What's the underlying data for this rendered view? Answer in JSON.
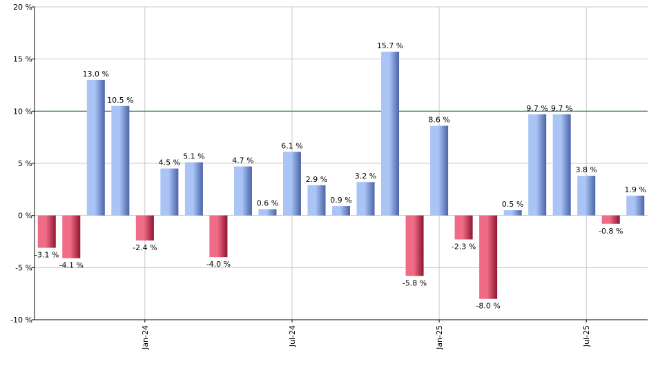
{
  "chart_data": {
    "type": "bar",
    "title": "",
    "xlabel": "",
    "ylabel": "",
    "ylim": [
      -10,
      20
    ],
    "y_ticks": [
      -10,
      -5,
      0,
      5,
      10,
      15,
      20
    ],
    "y_tick_labels": [
      "-10 %",
      "-5 %",
      "0 %",
      "5 %",
      "10 %",
      "15 %",
      "20 %"
    ],
    "grid": true,
    "reference_line": {
      "value": 10,
      "color": "#1f7a1f"
    },
    "values": [
      -3.1,
      -4.1,
      13.0,
      10.5,
      -2.4,
      4.5,
      5.1,
      -4.0,
      4.7,
      0.6,
      6.1,
      2.9,
      0.9,
      3.2,
      15.7,
      -5.8,
      8.6,
      -2.3,
      -8.0,
      0.5,
      9.7,
      9.7,
      3.8,
      -0.8,
      1.9
    ],
    "labels": [
      "-3.1 %",
      "-4.1 %",
      "13.0 %",
      "10.5 %",
      "-2.4 %",
      "4.5 %",
      "5.1 %",
      "-4.0 %",
      "4.7 %",
      "0.6 %",
      "6.1 %",
      "2.9 %",
      "0.9 %",
      "3.2 %",
      "15.7 %",
      "-5.8 %",
      "8.6 %",
      "-2.3 %",
      "-8.0 %",
      "0.5 %",
      "9.7 %",
      "9.7 %",
      "3.8 %",
      "-0.8 %",
      "1.9 %"
    ],
    "x_ticks": [
      {
        "label": "Jan-24",
        "index": 4
      },
      {
        "label": "Jul-24",
        "index": 10
      },
      {
        "label": "Jan-25",
        "index": 16
      },
      {
        "label": "Jul-25",
        "index": 22
      }
    ],
    "colors": {
      "positive_dark": "#4a63a8",
      "positive_light": "#a9c4f5",
      "negative_dark": "#8f1530",
      "negative_light": "#f06b86",
      "grid": "#c8c8c8",
      "axis": "#000000"
    }
  }
}
